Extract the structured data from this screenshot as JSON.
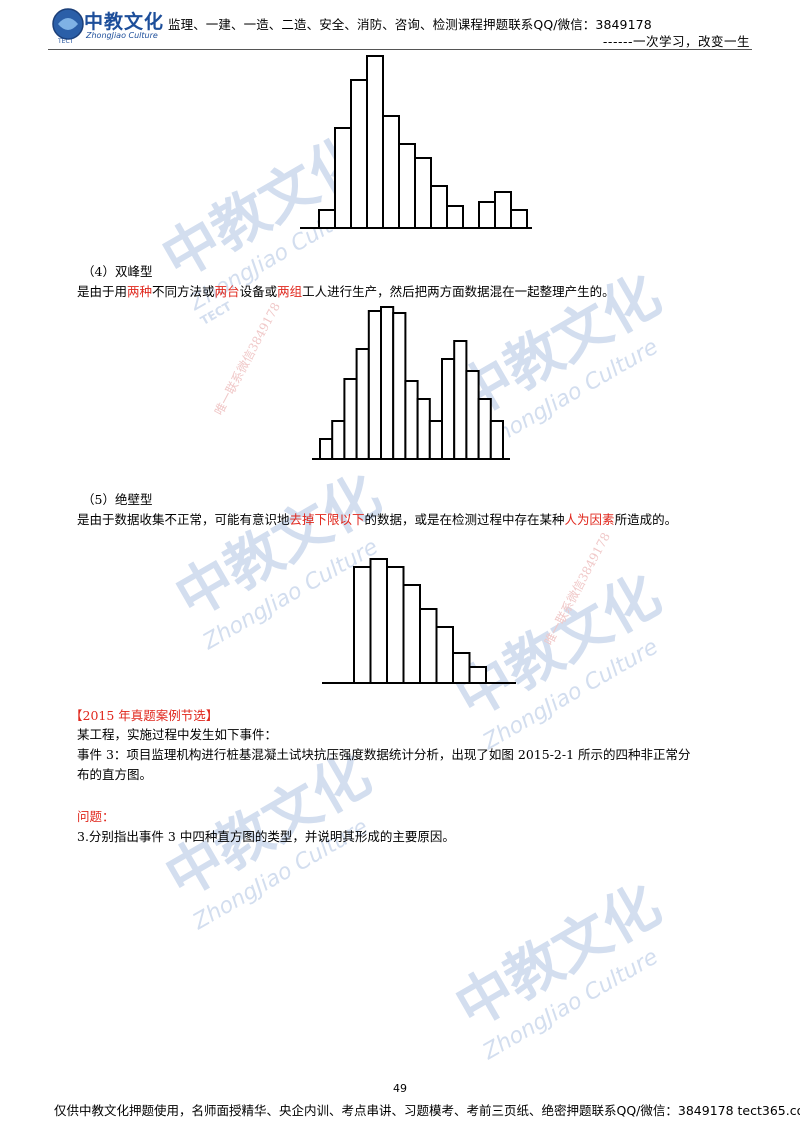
{
  "header": {
    "logo_cn": "中教文化",
    "logo_en": "ZhongJiao Culture",
    "logo_mark": "TECT",
    "text": "监理、一建、一造、二造、安全、消防、咨询、检测课程押题联系QQ/微信：3849178",
    "slogan": "------一次学习，改变一生"
  },
  "sections": {
    "s4_title": "（4）双峰型",
    "s4_desc": [
      {
        "t": "是由于用",
        "red": false
      },
      {
        "t": "两种",
        "red": true
      },
      {
        "t": "不同方法或",
        "red": false
      },
      {
        "t": "两台",
        "red": true
      },
      {
        "t": "设备或",
        "red": false
      },
      {
        "t": "两组",
        "red": true
      },
      {
        "t": "工人进行生产，然后把两方面数据混在一起整理产生的。",
        "red": false
      }
    ],
    "s5_title": "（5）绝壁型",
    "s5_desc": [
      {
        "t": "是由于数据收集不正常，可能有意识地",
        "red": false
      },
      {
        "t": "去掉下限以下",
        "red": true
      },
      {
        "t": "的数据，或是在检测过程中存在某种",
        "red": false
      },
      {
        "t": "人为因素",
        "red": true
      },
      {
        "t": "所造成的。",
        "red": false
      }
    ]
  },
  "exam": {
    "heading": "【2015 年真题案例节选】",
    "intro": "某工程，实施过程中发生如下事件：",
    "event3_line1": "事件 3：项目监理机构进行桩基混凝土试块抗压强度数据统计分析，出现了如图 2015-2-1 所示的四种非正常分",
    "event3_line2": "布的直方图。",
    "question_label": "问题：",
    "question_3": "3.分别指出事件 3 中四种直方图的类型，并说明其形成的主要原因。"
  },
  "histograms": {
    "top_isolated_island": [
      18,
      100,
      148,
      172,
      112,
      84,
      70,
      42,
      22,
      0,
      26,
      36,
      18
    ],
    "double_peak": [
      20,
      38,
      80,
      110,
      148,
      152,
      146,
      78,
      60,
      38,
      100,
      118,
      88,
      60,
      38
    ],
    "cliff": [
      116,
      124,
      116,
      98,
      74,
      56,
      30,
      16
    ]
  },
  "watermarks": {
    "brand_cn": "中教文化",
    "brand_en": "ZhongJiao Culture",
    "brand_mark": "TECT",
    "contact": "唯一联系微信3849178"
  },
  "footer": {
    "page_number": "49",
    "text": "仅供中教文化押题使用，名师面授精华、央企内训、考点串讲、习题模考、考前三页纸、绝密押题联系QQ/微信：3849178 tect365.com"
  },
  "colors": {
    "accent_red": "#e0281e",
    "watermark_blue": "#c5d4ea"
  }
}
